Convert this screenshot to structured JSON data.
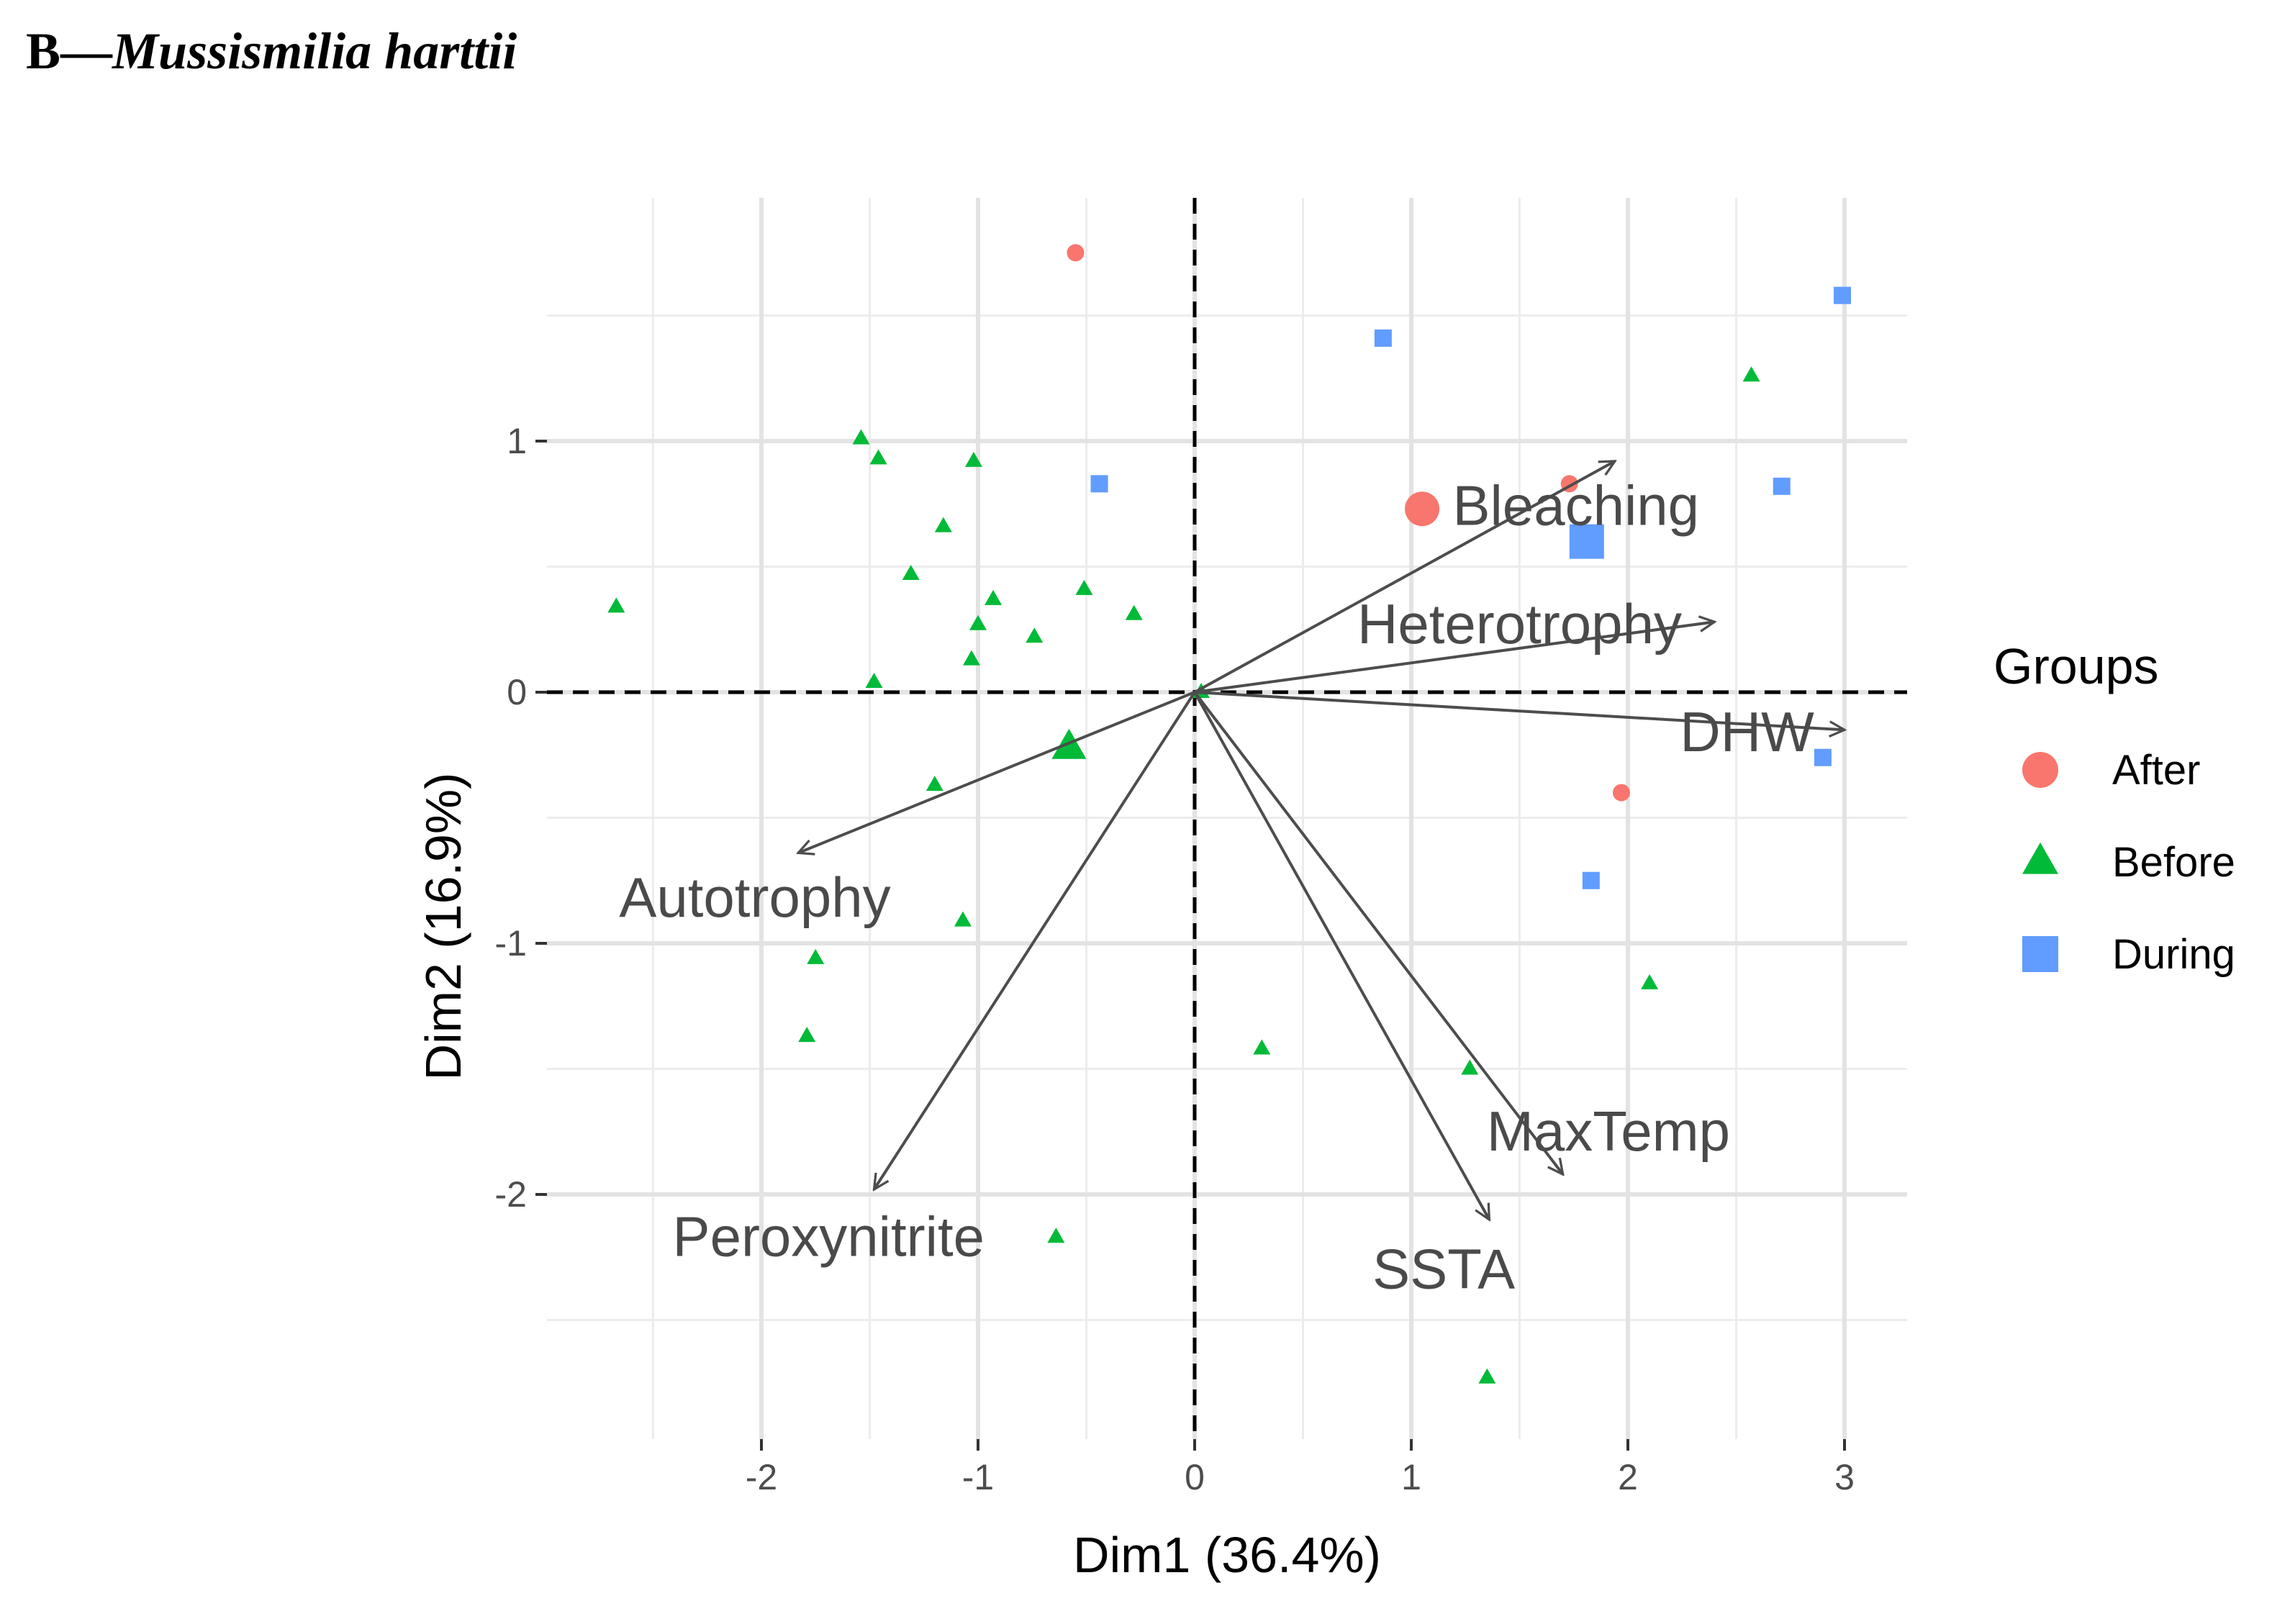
{
  "chart_data": {
    "type": "scatter",
    "subtype": "pca-biplot",
    "title_prefix": "B—",
    "title_species": "Mussismilia harttii",
    "xlabel": "Dim1 (36.4%)",
    "ylabel": "Dim2 (16.9%)",
    "xlim": [
      -2.8,
      3.3
    ],
    "ylim": [
      -3.0,
      2.0
    ],
    "x_ticks": [
      -2,
      -1,
      0,
      1,
      2,
      3
    ],
    "x_tick_labels": [
      "-2",
      "-1",
      "0",
      "1",
      "2",
      "3"
    ],
    "y_ticks": [
      -2,
      -1,
      0,
      1
    ],
    "y_tick_labels": [
      "-2",
      "-1",
      "0",
      "1"
    ],
    "grid": true,
    "reference_lines": {
      "x": 0,
      "y": 0,
      "style": "dashed"
    },
    "legend": {
      "title": "Groups",
      "position": "right",
      "entries": [
        {
          "name": "After",
          "shape": "circle",
          "color": "#F8766D"
        },
        {
          "name": "Before",
          "shape": "triangle",
          "color": "#00BA38"
        },
        {
          "name": "During",
          "shape": "square",
          "color": "#619CFF"
        }
      ]
    },
    "series": [
      {
        "name": "After",
        "shape": "circle",
        "color": "#F8766D",
        "points": [
          [
            -0.55,
            1.75
          ],
          [
            1.73,
            0.83
          ],
          [
            1.97,
            -0.4
          ]
        ],
        "centroid": [
          1.05,
          0.73
        ]
      },
      {
        "name": "Before",
        "shape": "triangle",
        "color": "#00BA38",
        "points": [
          [
            -2.67,
            0.34
          ],
          [
            -1.54,
            1.01
          ],
          [
            -1.46,
            0.93
          ],
          [
            -1.02,
            0.92
          ],
          [
            -1.16,
            0.66
          ],
          [
            -1.31,
            0.47
          ],
          [
            -0.93,
            0.37
          ],
          [
            -1.0,
            0.27
          ],
          [
            -0.51,
            0.41
          ],
          [
            -0.28,
            0.31
          ],
          [
            -0.74,
            0.22
          ],
          [
            -1.03,
            0.13
          ],
          [
            -1.48,
            0.04
          ],
          [
            -1.2,
            -0.37
          ],
          [
            -1.07,
            -0.91
          ],
          [
            -1.75,
            -1.06
          ],
          [
            -1.79,
            -1.37
          ],
          [
            -0.64,
            -2.17
          ],
          [
            0.31,
            -1.42
          ],
          [
            1.27,
            -1.5
          ],
          [
            2.1,
            -1.16
          ],
          [
            1.35,
            -2.73
          ],
          [
            2.57,
            1.26
          ],
          [
            0.03,
            0.0
          ]
        ],
        "centroid": [
          -0.58,
          -0.22
        ]
      },
      {
        "name": "During",
        "shape": "square",
        "color": "#619CFF",
        "points": [
          [
            0.87,
            1.41
          ],
          [
            -0.44,
            0.83
          ],
          [
            2.99,
            1.58
          ],
          [
            2.71,
            0.82
          ],
          [
            2.9,
            -0.26
          ],
          [
            1.83,
            -0.75
          ]
        ],
        "centroid": [
          1.81,
          0.6
        ]
      }
    ],
    "variables": [
      {
        "name": "Bleaching",
        "x": 1.94,
        "y": 0.92,
        "label_x": 1.76,
        "label_y": 0.74,
        "label_anchor": "middle"
      },
      {
        "name": "Heterotrophy",
        "x": 2.4,
        "y": 0.28,
        "label_x": 1.5,
        "label_y": 0.27,
        "label_anchor": "middle"
      },
      {
        "name": "DHW",
        "x": 3.0,
        "y": -0.15,
        "label_x": 2.55,
        "label_y": -0.16,
        "label_anchor": "middle"
      },
      {
        "name": "Autotrophy",
        "x": -1.83,
        "y": -0.64,
        "label_x": -2.03,
        "label_y": -0.82,
        "label_anchor": "middle"
      },
      {
        "name": "Peroxynitrite",
        "x": -1.48,
        "y": -1.98,
        "label_x": -1.69,
        "label_y": -2.17,
        "label_anchor": "middle"
      },
      {
        "name": "MaxTemp",
        "x": 1.7,
        "y": -1.92,
        "label_x": 1.91,
        "label_y": -1.75,
        "label_anchor": "middle"
      },
      {
        "name": "SSTA",
        "x": 1.36,
        "y": -2.1,
        "label_x": 1.15,
        "label_y": -2.3,
        "label_anchor": "middle"
      }
    ]
  }
}
